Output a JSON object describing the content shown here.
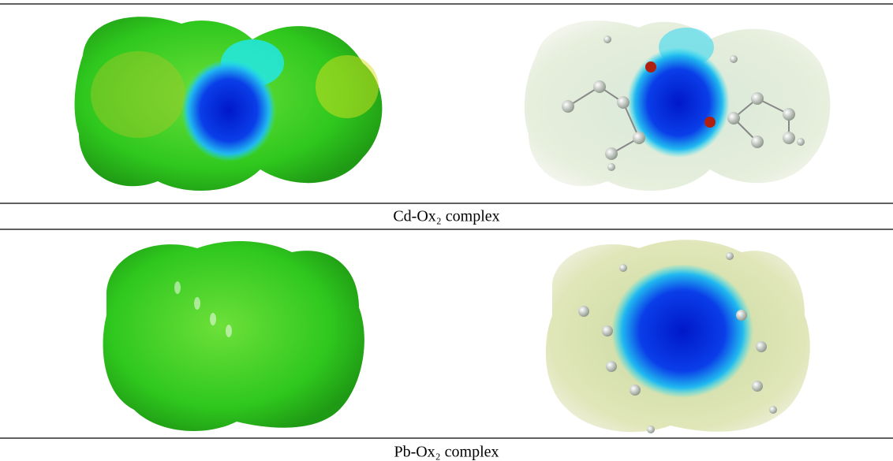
{
  "figure": {
    "rows": [
      {
        "caption": "Cd-Ox₂ complex"
      },
      {
        "caption": "Pb-Ox₂ complex"
      }
    ]
  }
}
